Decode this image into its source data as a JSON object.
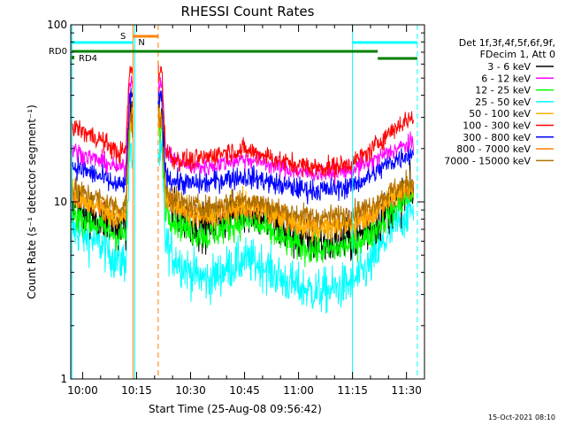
{
  "chart_data": {
    "type": "line",
    "title": "RHESSI Count Rates",
    "xlabel": "Start Time (25-Aug-08 09:56:42)",
    "ylabel": "Count Rate (s⁻¹ detector segment⁻¹)",
    "y_scale": "log",
    "ylim": [
      1,
      100
    ],
    "y_ticks": [
      {
        "value": 1,
        "label": "1"
      },
      {
        "value": 10,
        "label": "10"
      },
      {
        "value": 100,
        "label": "100"
      }
    ],
    "xlim": [
      "09:56:42",
      "11:35:00"
    ],
    "x_ticks": [
      {
        "value": "10:00",
        "label": "10:00"
      },
      {
        "value": "10:15",
        "label": "10:15"
      },
      {
        "value": "10:30",
        "label": "10:30"
      },
      {
        "value": "10:45",
        "label": "10:45"
      },
      {
        "value": "11:00",
        "label": "11:00"
      },
      {
        "value": "11:15",
        "label": "11:15"
      },
      {
        "value": "11:30",
        "label": "11:30"
      }
    ],
    "legend_header": [
      "Det 1f,3f,4f,5f,6f,9f,",
      "FDecim 1, Att 0"
    ],
    "legend_position": "right",
    "x": [
      "09:57",
      "10:00",
      "10:05",
      "10:10",
      "10:12",
      "10:13",
      "10:22",
      "10:23",
      "10:25",
      "10:30",
      "10:35",
      "10:40",
      "10:45",
      "10:50",
      "10:55",
      "11:00",
      "11:05",
      "11:10",
      "11:15",
      "11:20",
      "11:25",
      "11:30",
      "11:32"
    ],
    "series": [
      {
        "name": "3 - 6 keV",
        "color": "#000000",
        "values": [
          9.6,
          9.0,
          8.1,
          7.2,
          7.5,
          30,
          30,
          11,
          9.0,
          7.6,
          7.2,
          8.3,
          9.0,
          8.3,
          7.0,
          6.2,
          5.8,
          5.9,
          6.2,
          7.0,
          9.0,
          11,
          11.5
        ]
      },
      {
        "name": "6 - 12 keV",
        "color": "#ff00ff",
        "values": [
          20,
          18.5,
          17,
          15.5,
          16,
          48,
          48,
          20,
          17.5,
          15.8,
          15.8,
          16.8,
          17.5,
          16.8,
          15.5,
          14.8,
          14.5,
          14.6,
          15.2,
          16.8,
          19,
          21,
          21.5
        ]
      },
      {
        "name": "12 - 25 keV",
        "color": "#00ff00",
        "values": [
          8.6,
          8.1,
          7.2,
          6.4,
          6.6,
          26,
          26,
          9.5,
          8.0,
          6.8,
          6.4,
          7.2,
          7.8,
          7.2,
          6.2,
          5.6,
          5.3,
          5.4,
          5.8,
          6.5,
          8.5,
          10.5,
          11
        ]
      },
      {
        "name": "25 - 50 keV",
        "color": "#00ffff",
        "values": [
          7.0,
          6.5,
          5.8,
          4.6,
          4.7,
          18,
          18,
          6.0,
          5.0,
          4.0,
          3.6,
          4.2,
          4.7,
          4.4,
          3.7,
          3.3,
          3.1,
          3.2,
          3.5,
          4.4,
          6.5,
          8.6,
          9.0
        ]
      },
      {
        "name": "50 - 100 keV",
        "color": "#ffb000",
        "values": [
          11.5,
          10.5,
          9.4,
          8.2,
          8.6,
          30,
          30,
          11.2,
          9.8,
          8.6,
          8.3,
          9.0,
          9.6,
          9.0,
          8.2,
          7.4,
          7.1,
          7.2,
          7.6,
          8.6,
          10.5,
          12.2,
          12.6
        ]
      },
      {
        "name": "100 - 300 keV",
        "color": "#ff0000",
        "values": [
          27,
          25,
          22.5,
          18.8,
          19.5,
          55,
          55,
          20,
          17.5,
          17.0,
          18.0,
          19.3,
          19.6,
          18.6,
          17.0,
          16.2,
          15.6,
          15.8,
          16.6,
          19.5,
          24.5,
          29,
          30
        ]
      },
      {
        "name": "300 - 800 keV",
        "color": "#0000ff",
        "values": [
          16,
          15.2,
          13.8,
          12.2,
          12.8,
          38,
          38,
          14.5,
          13.2,
          12.6,
          12.8,
          13.6,
          13.9,
          13.3,
          12.4,
          11.9,
          11.6,
          11.8,
          12.4,
          14,
          16.5,
          18.5,
          19
        ]
      },
      {
        "name": "800 - 7000 keV",
        "color": "#ff8000",
        "values": [
          10.6,
          10.0,
          9.1,
          8.3,
          8.4,
          28,
          28,
          10.8,
          9.6,
          8.6,
          8.4,
          9.0,
          9.5,
          8.9,
          8.1,
          7.6,
          7.3,
          7.4,
          7.8,
          8.5,
          10.2,
          11.8,
          12.2
        ]
      },
      {
        "name": "7000 - 15000 keV",
        "color": "#b07000",
        "values": [
          12,
          11.3,
          10.4,
          9.3,
          9.5,
          30,
          30,
          11.8,
          10.5,
          9.5,
          9.3,
          9.9,
          10.4,
          9.8,
          9.0,
          8.5,
          8.2,
          8.3,
          8.7,
          9.5,
          11.2,
          12.8,
          13.2
        ]
      }
    ],
    "annotations": {
      "rd0_label": "RD0",
      "rd4_label": "RD4",
      "s_label": "S",
      "n_label": "N"
    },
    "footer_date": "15-Oct-2021 08:10"
  }
}
